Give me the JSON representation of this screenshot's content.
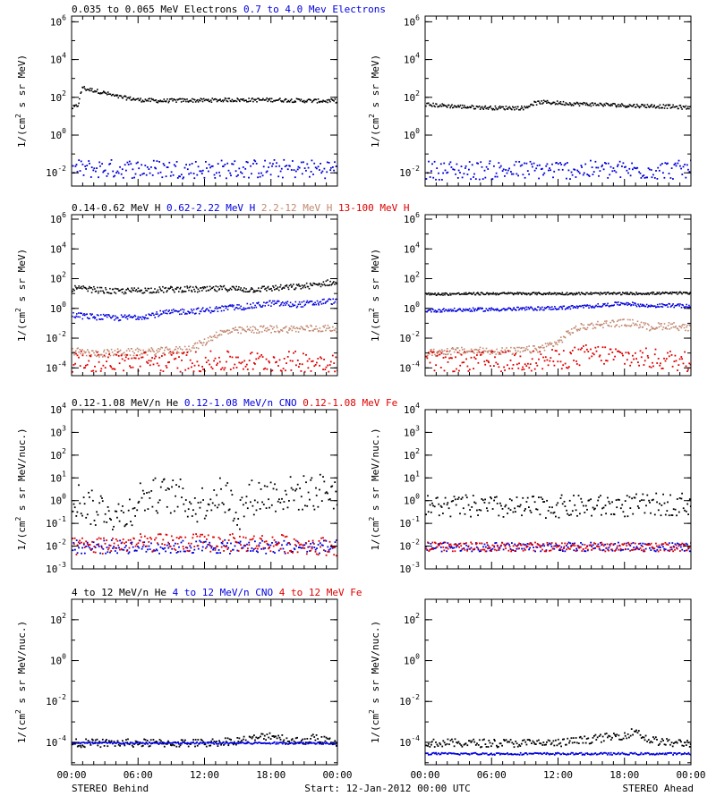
{
  "figure": {
    "footer_left": "STEREO Behind",
    "footer_center": "Start: 12-Jan-2012 00:00 UTC",
    "footer_right": "STEREO Ahead"
  },
  "colors": {
    "black": "#000000",
    "blue": "#0000dd",
    "tan": "#c08870",
    "red": "#e00000",
    "background": "#ffffff"
  },
  "chart_data": [
    {
      "type": "scatter",
      "row": 1,
      "spacecraft": "STEREO Behind",
      "legend": [
        {
          "label": "0.035 to 0.065 MeV Electrons",
          "color": "#000000"
        },
        {
          "label": "0.7 to 4.0 Mev Electrons",
          "color": "#0000dd"
        }
      ],
      "ylabel": "1/(cm^2 s sr MeV)",
      "yscale": "log",
      "ylim": [
        0.002,
        2000000
      ],
      "yticks": [
        {
          "exp": "-2"
        },
        {
          "exp": "0"
        },
        {
          "exp": "2"
        },
        {
          "exp": "4"
        },
        {
          "exp": "6"
        }
      ],
      "xlim_hours": [
        0,
        24
      ],
      "x_ticks": [
        "00:00",
        "06:00",
        "12:00",
        "18:00",
        "00:00"
      ],
      "x_ticks_visible": false,
      "series": [
        {
          "color": "#000000",
          "style": "line",
          "x": [
            0,
            0.5,
            0.7,
            0.9,
            1.2,
            2,
            3,
            4,
            6,
            8,
            10,
            12,
            14,
            16,
            18,
            20,
            22,
            24
          ],
          "y": [
            30,
            40,
            100,
            400,
            300,
            250,
            180,
            120,
            80,
            70,
            75,
            75,
            80,
            78,
            80,
            75,
            70,
            70
          ],
          "scatter_pct": 10
        },
        {
          "color": "#0000dd",
          "style": "dots",
          "x": [
            0,
            6,
            12,
            18,
            24
          ],
          "y": [
            0.018,
            0.018,
            0.017,
            0.018,
            0.018
          ],
          "scatter_pct": 50
        }
      ]
    },
    {
      "type": "scatter",
      "row": 1,
      "spacecraft": "STEREO Ahead",
      "legend": [],
      "ylabel": "1/(cm^2 s sr MeV)",
      "yscale": "log",
      "ylim": [
        0.002,
        2000000
      ],
      "yticks": [
        {
          "exp": "-2"
        },
        {
          "exp": "0"
        },
        {
          "exp": "2"
        },
        {
          "exp": "4"
        },
        {
          "exp": "6"
        }
      ],
      "xlim_hours": [
        0,
        24
      ],
      "x_ticks": [
        "00:00",
        "06:00",
        "12:00",
        "18:00",
        "00:00"
      ],
      "x_ticks_visible": false,
      "series": [
        {
          "color": "#000000",
          "style": "line",
          "x": [
            0,
            3,
            6,
            9,
            9.6,
            10.5,
            12,
            14,
            16,
            18,
            20,
            22,
            24
          ],
          "y": [
            45,
            35,
            30,
            30,
            50,
            60,
            55,
            48,
            45,
            40,
            38,
            35,
            30
          ],
          "scatter_pct": 10
        },
        {
          "color": "#0000dd",
          "style": "dots",
          "x": [
            0,
            6,
            12,
            18,
            24
          ],
          "y": [
            0.015,
            0.015,
            0.016,
            0.015,
            0.016
          ],
          "scatter_pct": 50
        }
      ]
    },
    {
      "type": "scatter",
      "row": 2,
      "spacecraft": "STEREO Behind",
      "legend": [
        {
          "label": "0.14-0.62 MeV H",
          "color": "#000000"
        },
        {
          "label": "0.62-2.22 MeV H",
          "color": "#0000dd"
        },
        {
          "label": "2.2-12 MeV H",
          "color": "#c08870"
        },
        {
          "label": "13-100 MeV H",
          "color": "#e00000"
        }
      ],
      "ylabel": "1/(cm^2 s sr MeV)",
      "yscale": "log",
      "ylim": [
        3e-05,
        2000000
      ],
      "yticks": [
        {
          "exp": "-4"
        },
        {
          "exp": "-2"
        },
        {
          "exp": "0"
        },
        {
          "exp": "2"
        },
        {
          "exp": "4"
        },
        {
          "exp": "6"
        }
      ],
      "xlim_hours": [
        0,
        24
      ],
      "x_ticks": [
        "00:00",
        "06:00",
        "12:00",
        "18:00",
        "00:00"
      ],
      "x_ticks_visible": false,
      "series": [
        {
          "color": "#000000",
          "style": "line",
          "x": [
            0,
            2,
            4,
            6,
            8,
            10,
            12,
            14,
            16,
            18,
            20,
            22,
            23,
            24
          ],
          "y": [
            25,
            20,
            15,
            18,
            20,
            22,
            20,
            25,
            20,
            25,
            30,
            40,
            60,
            50
          ],
          "scatter_pct": 20
        },
        {
          "color": "#0000dd",
          "style": "line",
          "x": [
            0,
            2,
            4,
            6,
            8,
            10,
            12,
            14,
            16,
            18,
            20,
            22,
            23,
            24
          ],
          "y": [
            0.4,
            0.3,
            0.25,
            0.3,
            0.5,
            0.7,
            0.8,
            1.2,
            1.5,
            2.5,
            2.0,
            2.5,
            3.5,
            3.0
          ],
          "scatter_pct": 20
        },
        {
          "color": "#c08870",
          "style": "line",
          "x": [
            0,
            2,
            4,
            6,
            8,
            10,
            11,
            12,
            13,
            14,
            16,
            18,
            20,
            22,
            24
          ],
          "y": [
            0.0015,
            0.001,
            0.0012,
            0.0013,
            0.0015,
            0.0018,
            0.003,
            0.006,
            0.02,
            0.03,
            0.04,
            0.045,
            0.045,
            0.05,
            0.05
          ],
          "scatter_pct": 25
        },
        {
          "color": "#e00000",
          "style": "dots",
          "x": [
            0,
            6,
            12,
            18,
            24
          ],
          "y": [
            0.0003,
            0.0003,
            0.0003,
            0.0003,
            0.0003
          ],
          "scatter_pct": 70
        }
      ]
    },
    {
      "type": "scatter",
      "row": 2,
      "spacecraft": "STEREO Ahead",
      "legend": [],
      "ylabel": "1/(cm^2 s sr MeV)",
      "yscale": "log",
      "ylim": [
        3e-05,
        2000000
      ],
      "yticks": [
        {
          "exp": "-4"
        },
        {
          "exp": "-2"
        },
        {
          "exp": "0"
        },
        {
          "exp": "2"
        },
        {
          "exp": "4"
        },
        {
          "exp": "6"
        }
      ],
      "xlim_hours": [
        0,
        24
      ],
      "x_ticks": [
        "00:00",
        "06:00",
        "12:00",
        "18:00",
        "00:00"
      ],
      "x_ticks_visible": false,
      "series": [
        {
          "color": "#000000",
          "style": "line",
          "x": [
            0,
            6,
            12,
            18,
            24
          ],
          "y": [
            10,
            11,
            11,
            11,
            12
          ],
          "scatter_pct": 8
        },
        {
          "color": "#0000dd",
          "style": "line",
          "x": [
            0,
            4,
            8,
            10,
            12,
            14,
            16,
            18,
            20,
            22,
            24
          ],
          "y": [
            0.8,
            0.9,
            1.0,
            1.1,
            1.2,
            1.4,
            1.8,
            2.5,
            1.6,
            1.8,
            1.5
          ],
          "scatter_pct": 12
        },
        {
          "color": "#c08870",
          "style": "line",
          "x": [
            0,
            2,
            4,
            6,
            8,
            10,
            12,
            13,
            14,
            15,
            16,
            18,
            19,
            20,
            22,
            24
          ],
          "y": [
            0.001,
            0.0015,
            0.0015,
            0.0015,
            0.0015,
            0.002,
            0.006,
            0.03,
            0.06,
            0.08,
            0.1,
            0.12,
            0.11,
            0.06,
            0.08,
            0.05
          ],
          "scatter_pct": 25
        },
        {
          "color": "#e00000",
          "style": "dots",
          "x": [
            0,
            6,
            12,
            15,
            18,
            24
          ],
          "y": [
            0.0003,
            0.0003,
            0.0004,
            0.001,
            0.0006,
            0.0003
          ],
          "scatter_pct": 70
        }
      ]
    },
    {
      "type": "scatter",
      "row": 3,
      "spacecraft": "STEREO Behind",
      "legend": [
        {
          "label": "0.12-1.08 MeV/n He",
          "color": "#000000"
        },
        {
          "label": "0.12-1.08 MeV/n CNO",
          "color": "#0000dd"
        },
        {
          "label": "0.12-1.08 MeV Fe",
          "color": "#e00000"
        }
      ],
      "ylabel": "1/(cm^2 s sr MeV/nuc.)",
      "yscale": "log",
      "ylim": [
        0.001,
        10000
      ],
      "yticks": [
        {
          "mant": "10",
          "exp": "-3"
        },
        {
          "mant": "10",
          "exp": "-2"
        },
        {
          "mant": "10",
          "exp": "-1"
        },
        {
          "mant": "10",
          "exp": "0"
        },
        {
          "mant": "10",
          "exp": "1"
        },
        {
          "mant": "10",
          "exp": "2"
        },
        {
          "mant": "10",
          "exp": "3"
        },
        {
          "mant": "10",
          "exp": "4"
        }
      ],
      "xlim_hours": [
        0,
        24
      ],
      "x_ticks": [
        "00:00",
        "06:00",
        "12:00",
        "18:00",
        "00:00"
      ],
      "x_ticks_visible": false,
      "series": [
        {
          "color": "#000000",
          "style": "dots",
          "x": [
            0,
            1,
            2,
            3,
            4,
            5,
            6,
            8,
            10,
            11,
            12,
            13,
            14,
            15,
            16,
            18,
            20,
            22,
            23,
            24
          ],
          "y": [
            1.5,
            1.0,
            0.4,
            0.6,
            0.2,
            0.3,
            1.5,
            2.0,
            1.5,
            0.6,
            1.0,
            2.0,
            1.5,
            0.3,
            1.5,
            2.0,
            2.2,
            2.5,
            3.5,
            2.0
          ],
          "scatter_pct": 80
        },
        {
          "color": "#0000dd",
          "style": "dots",
          "x": [
            0,
            6,
            12,
            18,
            24
          ],
          "y": [
            0.01,
            0.01,
            0.01,
            0.01,
            0.01
          ],
          "scatter_pct": 30
        },
        {
          "color": "#e00000",
          "style": "dots",
          "x": [
            0,
            6,
            12,
            18,
            24
          ],
          "y": [
            0.01,
            0.015,
            0.015,
            0.015,
            0.01
          ],
          "scatter_pct": 40
        }
      ]
    },
    {
      "type": "scatter",
      "row": 3,
      "spacecraft": "STEREO Ahead",
      "legend": [],
      "ylabel": "1/(cm^2 s sr MeV/nuc.)",
      "yscale": "log",
      "ylim": [
        0.001,
        10000
      ],
      "yticks": [
        {
          "mant": "10",
          "exp": "-3"
        },
        {
          "mant": "10",
          "exp": "-2"
        },
        {
          "mant": "10",
          "exp": "-1"
        },
        {
          "mant": "10",
          "exp": "0"
        },
        {
          "mant": "10",
          "exp": "1"
        },
        {
          "mant": "10",
          "exp": "2"
        },
        {
          "mant": "10",
          "exp": "3"
        },
        {
          "mant": "10",
          "exp": "4"
        }
      ],
      "xlim_hours": [
        0,
        24
      ],
      "x_ticks": [
        "00:00",
        "06:00",
        "12:00",
        "18:00",
        "00:00"
      ],
      "x_ticks_visible": false,
      "series": [
        {
          "color": "#000000",
          "style": "dots",
          "x": [
            0,
            4,
            8,
            12,
            16,
            20,
            24
          ],
          "y": [
            0.6,
            0.6,
            0.5,
            0.6,
            0.6,
            0.7,
            0.8
          ],
          "scatter_pct": 50
        },
        {
          "color": "#0000dd",
          "style": "dots",
          "x": [
            0,
            6,
            12,
            18,
            24
          ],
          "y": [
            0.01,
            0.01,
            0.01,
            0.01,
            0.01
          ],
          "scatter_pct": 20
        },
        {
          "color": "#e00000",
          "style": "dots",
          "x": [
            0,
            6,
            12,
            18,
            24
          ],
          "y": [
            0.01,
            0.01,
            0.01,
            0.01,
            0.01
          ],
          "scatter_pct": 20
        }
      ]
    },
    {
      "type": "scatter",
      "row": 4,
      "spacecraft": "STEREO Behind",
      "legend": [
        {
          "label": "4 to 12 MeV/n He",
          "color": "#000000"
        },
        {
          "label": "4 to 12 MeV/n CNO",
          "color": "#0000dd"
        },
        {
          "label": "4 to 12 MeV Fe",
          "color": "#e00000"
        }
      ],
      "ylabel": "1/(cm^2 s sr MeV/nuc.)",
      "yscale": "log",
      "ylim": [
        8e-06,
        1000
      ],
      "yticks": [
        {
          "exp": "-4"
        },
        {
          "exp": "-2"
        },
        {
          "exp": "0"
        },
        {
          "exp": "2"
        }
      ],
      "xlim_hours": [
        0,
        24
      ],
      "x_ticks": [
        "00:00",
        "06:00",
        "12:00",
        "18:00",
        "00:00"
      ],
      "x_ticks_visible": true,
      "series": [
        {
          "color": "#000000",
          "style": "dots",
          "x": [
            0,
            6,
            12,
            16,
            18,
            20,
            22,
            24
          ],
          "y": [
            0.0001,
            0.0001,
            0.0001,
            0.00015,
            0.00025,
            0.00012,
            0.00018,
            0.0001
          ],
          "scatter_pct": 20
        },
        {
          "color": "#0000dd",
          "style": "dots",
          "x": [
            5,
            7
          ],
          "y": [
            0.0001,
            0.0001
          ],
          "scatter_pct": 5
        }
      ]
    },
    {
      "type": "scatter",
      "row": 4,
      "spacecraft": "STEREO Ahead",
      "legend": [],
      "ylabel": "1/(cm^2 s sr MeV/nuc.)",
      "yscale": "log",
      "ylim": [
        8e-06,
        1000
      ],
      "yticks": [
        {
          "exp": "-4"
        },
        {
          "exp": "-2"
        },
        {
          "exp": "0"
        },
        {
          "exp": "2"
        }
      ],
      "xlim_hours": [
        0,
        24
      ],
      "x_ticks": [
        "00:00",
        "06:00",
        "12:00",
        "18:00",
        "00:00"
      ],
      "x_ticks_visible": true,
      "series": [
        {
          "color": "#000000",
          "style": "dots",
          "x": [
            0,
            6,
            12,
            16,
            18,
            19,
            20,
            22,
            24
          ],
          "y": [
            0.0001,
            0.0001,
            0.0001,
            0.00018,
            0.00025,
            0.0004,
            0.00015,
            0.0001,
            0.0001
          ],
          "scatter_pct": 20
        },
        {
          "color": "#0000dd",
          "style": "dots",
          "x": [
            17,
            18.5
          ],
          "y": [
            3e-05,
            3e-05
          ],
          "scatter_pct": 5
        }
      ]
    }
  ]
}
